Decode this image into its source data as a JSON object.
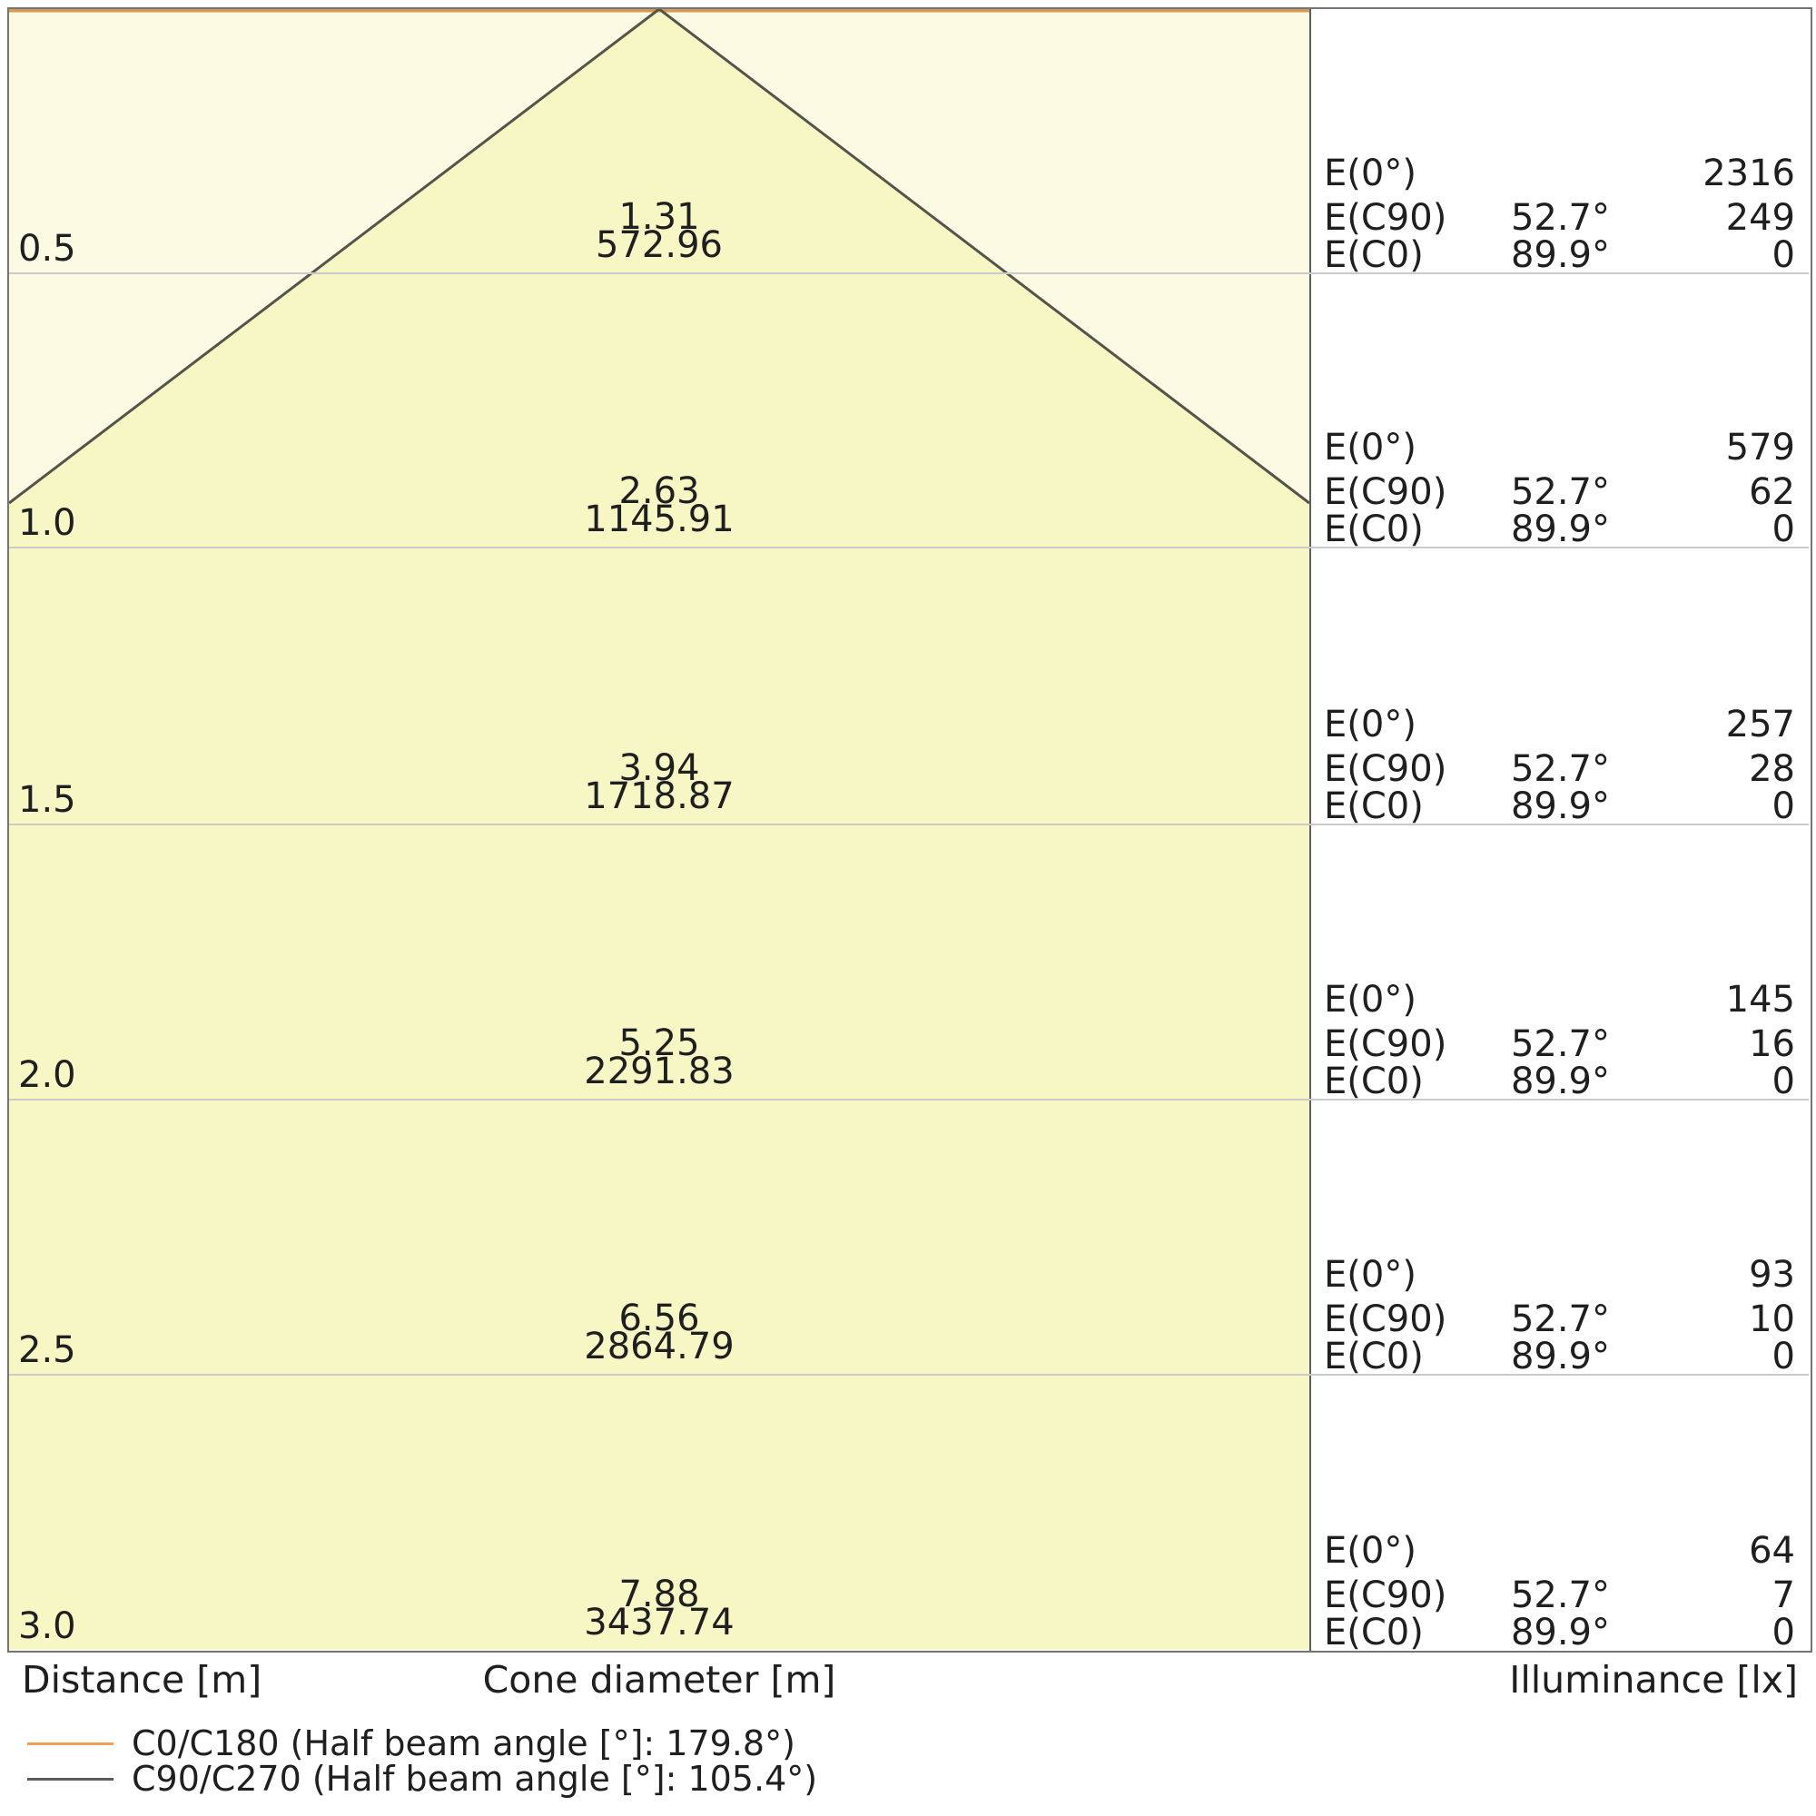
{
  "chart_data": {
    "type": "table",
    "description": "Luminaire light cone diagram: cone diameter and illuminance vs distance",
    "distance_m": [
      0.5,
      1.0,
      1.5,
      2.0,
      2.5,
      3.0
    ],
    "cone_diameter_m_c90_c270": [
      1.31,
      2.63,
      3.94,
      5.25,
      6.56,
      7.88
    ],
    "cone_diameter_m_c0_c180": [
      572.96,
      1145.91,
      1718.87,
      2291.83,
      2864.79,
      3437.74
    ],
    "illuminance_lx_E0": [
      2316,
      579,
      257,
      145,
      93,
      64
    ],
    "illuminance_lx_EC90": [
      249,
      62,
      28,
      16,
      10,
      7
    ],
    "illuminance_lx_EC0": [
      0,
      0,
      0,
      0,
      0,
      0
    ],
    "EC90_angle_deg": 52.7,
    "EC0_angle_deg": 89.9,
    "half_beam_angle_C0_C180_deg": 179.8,
    "half_beam_angle_C90_C270_deg": 105.4,
    "legend_position": "bottom-left",
    "grid": "horizontal row lines"
  },
  "rows": [
    {
      "distance": "0.5",
      "cone_c90": "1.31",
      "cone_c0": "572.96",
      "e0": "2316",
      "ec90": "249",
      "ec0": "0"
    },
    {
      "distance": "1.0",
      "cone_c90": "2.63",
      "cone_c0": "1145.91",
      "e0": "579",
      "ec90": "62",
      "ec0": "0"
    },
    {
      "distance": "1.5",
      "cone_c90": "3.94",
      "cone_c0": "1718.87",
      "e0": "257",
      "ec90": "28",
      "ec0": "0"
    },
    {
      "distance": "2.0",
      "cone_c90": "5.25",
      "cone_c0": "2291.83",
      "e0": "145",
      "ec90": "16",
      "ec0": "0"
    },
    {
      "distance": "2.5",
      "cone_c90": "6.56",
      "cone_c0": "2864.79",
      "e0": "93",
      "ec90": "10",
      "ec0": "0"
    },
    {
      "distance": "3.0",
      "cone_c90": "7.88",
      "cone_c0": "3437.74",
      "e0": "64",
      "ec90": "7",
      "ec0": "0"
    }
  ],
  "labels": {
    "e0": "E(0°)",
    "ec90": "E(C90)",
    "ec0": "E(C0)",
    "angle_c90": "52.7°",
    "angle_c0": "89.9°",
    "axis_distance": "Distance [m]",
    "axis_cone_diameter": "Cone diameter [m]",
    "axis_illuminance": "Illuminance [lx]"
  },
  "legend": {
    "items": [
      {
        "label": "C0/C180 (Half beam angle [°]: 179.8°)",
        "color": "#f0a055"
      },
      {
        "label": "C90/C270 (Half beam angle [°]: 105.4°)",
        "color": "#5c5c5c"
      }
    ]
  },
  "colors": {
    "cone_outer_fill": "#fbfbe4",
    "cone_inner_fill": "#f7f7c5",
    "cone_edge_line": "#56544a",
    "c0_top_line": "#d29a55",
    "row_line": "#cacaca",
    "frame_border": "#757575",
    "divider": "#5d5d5d",
    "text": "#1f1f1f"
  }
}
